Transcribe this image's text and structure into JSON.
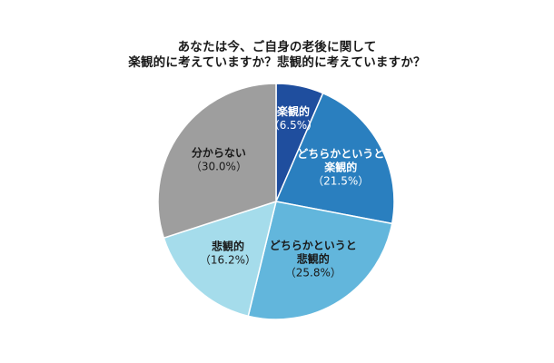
{
  "chart_data": {
    "type": "pie",
    "title_lines": [
      "あなたは今、ご自身の老後に関して",
      "楽観的に考えていますか？悲観的に考えていますか？"
    ],
    "start": "12 o'clock",
    "direction": "clockwise",
    "slices": [
      {
        "label_lines": [
          "楽観的"
        ],
        "value_text": "（6.5%）",
        "value": 6.5,
        "color": "#1f4e9e",
        "text_color": "#ffffff"
      },
      {
        "label_lines": [
          "どちらかというと",
          "楽観的"
        ],
        "value_text": "（21.5%）",
        "value": 21.5,
        "color": "#2a7fbf",
        "text_color": "#ffffff"
      },
      {
        "label_lines": [
          "どちらかというと",
          "悲観的"
        ],
        "value_text": "（25.8%）",
        "value": 25.8,
        "color": "#62b6dc",
        "text_color": "#1a1a1a"
      },
      {
        "label_lines": [
          "悲観的"
        ],
        "value_text": "（16.2%）",
        "value": 16.2,
        "color": "#a5dceb",
        "text_color": "#1a1a1a"
      },
      {
        "label_lines": [
          "分からない"
        ],
        "value_text": "（30.0%）",
        "value": 30.0,
        "color": "#9e9e9e",
        "text_color": "#1a1a1a"
      }
    ]
  }
}
